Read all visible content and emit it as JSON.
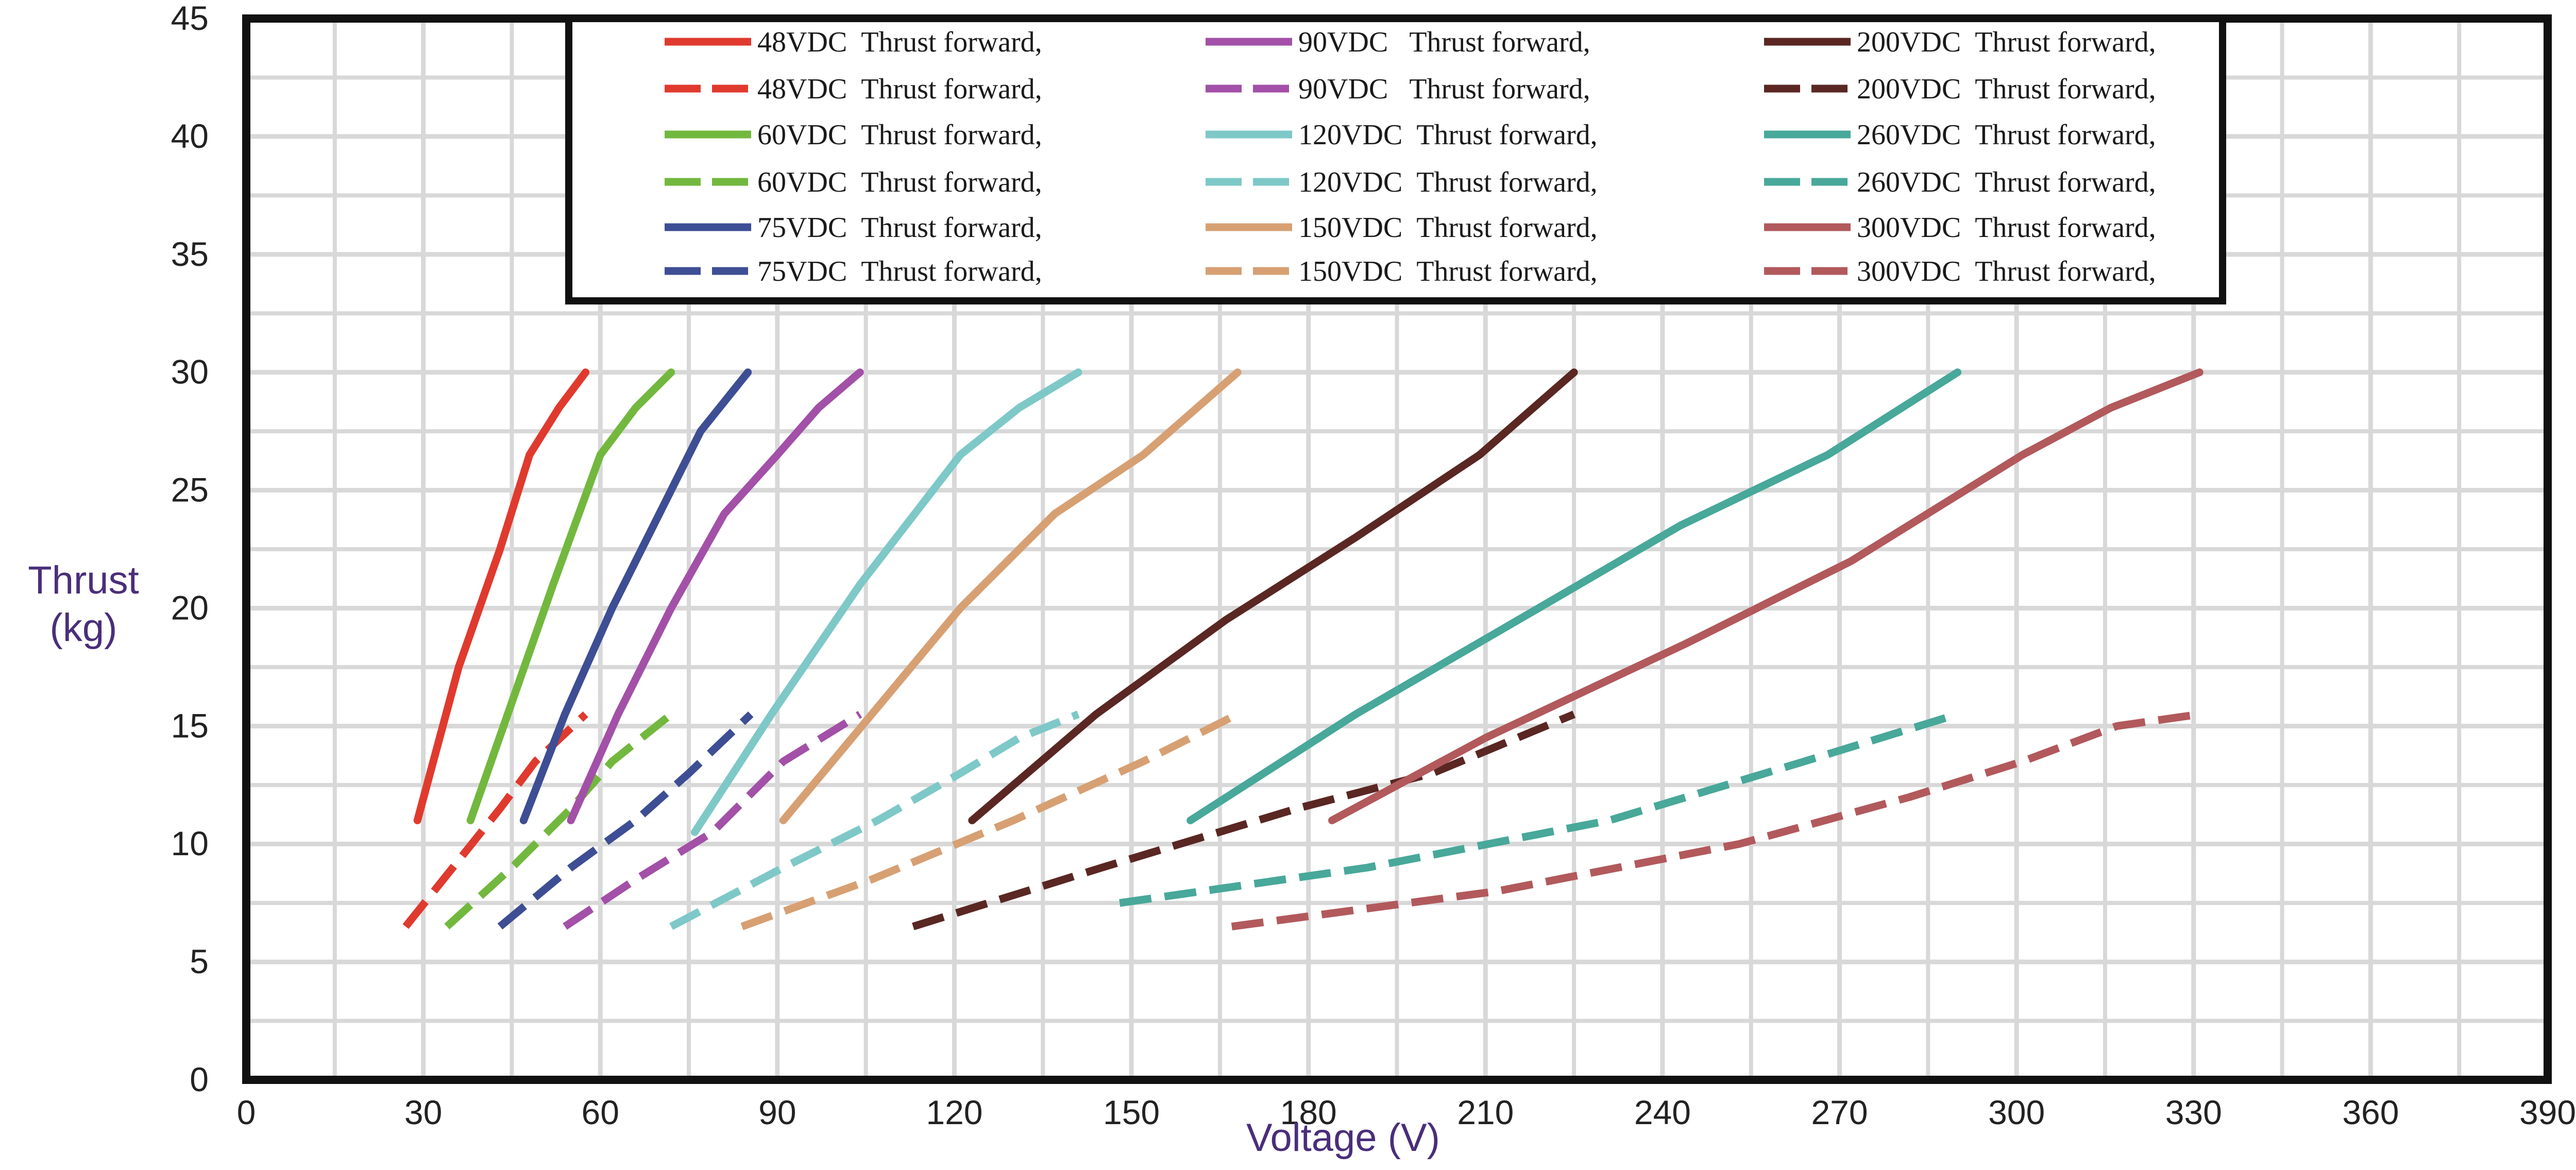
{
  "chart_data": {
    "type": "line",
    "title": "",
    "xlabel": "Voltage (V)",
    "ylabel_lines": [
      "Thrust",
      "(kg)"
    ],
    "xlim": [
      0,
      390
    ],
    "ylim": [
      0,
      45
    ],
    "x_ticks": [
      0,
      30,
      60,
      90,
      120,
      150,
      180,
      210,
      240,
      270,
      300,
      330,
      360,
      390
    ],
    "y_ticks": [
      0,
      5,
      10,
      15,
      20,
      25,
      30,
      35,
      40,
      45
    ],
    "grid": true,
    "legend_position": "top",
    "series": [
      {
        "name": "48VDC  Thrust forward,",
        "color": "#e03a2e",
        "style": "solid",
        "points": [
          [
            29,
            11
          ],
          [
            36,
            17.5
          ],
          [
            43,
            22.5
          ],
          [
            48,
            26.5
          ],
          [
            53,
            28.5
          ],
          [
            57.5,
            30
          ]
        ]
      },
      {
        "name": "48VDC  Thrust forward,",
        "color": "#e03a2e",
        "style": "dashed",
        "points": [
          [
            27,
            6.5
          ],
          [
            35,
            9
          ],
          [
            43,
            11.5
          ],
          [
            49,
            13.5
          ],
          [
            57.5,
            15.5
          ]
        ]
      },
      {
        "name": "60VDC  Thrust forward,",
        "color": "#72b83e",
        "style": "solid",
        "points": [
          [
            38,
            11
          ],
          [
            45,
            16
          ],
          [
            52,
            21
          ],
          [
            60,
            26.5
          ],
          [
            66,
            28.5
          ],
          [
            72,
            30
          ]
        ]
      },
      {
        "name": "60VDC  Thrust forward,",
        "color": "#72b83e",
        "style": "dashed",
        "points": [
          [
            34,
            6.5
          ],
          [
            45,
            9
          ],
          [
            55,
            11.5
          ],
          [
            62,
            13.5
          ],
          [
            72,
            15.5
          ]
        ]
      },
      {
        "name": "75VDC  Thrust forward,",
        "color": "#3e4e94",
        "style": "solid",
        "points": [
          [
            47,
            11
          ],
          [
            54,
            15.5
          ],
          [
            62,
            20
          ],
          [
            70,
            24
          ],
          [
            77,
            27.5
          ],
          [
            85,
            30
          ]
        ]
      },
      {
        "name": "75VDC  Thrust forward,",
        "color": "#3e4e94",
        "style": "dashed",
        "points": [
          [
            43,
            6.5
          ],
          [
            55,
            9
          ],
          [
            66,
            11
          ],
          [
            75,
            13
          ],
          [
            85.5,
            15.5
          ]
        ]
      },
      {
        "name": "90VDC   Thrust forward,",
        "color": "#a350a8",
        "style": "solid",
        "points": [
          [
            55,
            11
          ],
          [
            63,
            15.5
          ],
          [
            72,
            20
          ],
          [
            81,
            24
          ],
          [
            90,
            26.5
          ],
          [
            97,
            28.5
          ],
          [
            104,
            30
          ]
        ]
      },
      {
        "name": "90VDC   Thrust forward,",
        "color": "#a350a8",
        "style": "dashed",
        "points": [
          [
            54,
            6.5
          ],
          [
            66,
            8.5
          ],
          [
            79,
            10.5
          ],
          [
            91,
            13.5
          ],
          [
            104,
            15.5
          ]
        ]
      },
      {
        "name": "120VDC  Thrust forward,",
        "color": "#7ec8c8",
        "style": "solid",
        "points": [
          [
            76,
            10.5
          ],
          [
            89,
            15.5
          ],
          [
            104,
            21
          ],
          [
            121,
            26.5
          ],
          [
            131,
            28.5
          ],
          [
            141,
            30
          ]
        ]
      },
      {
        "name": "120VDC  Thrust forward,",
        "color": "#7ec8c8",
        "style": "dashed",
        "points": [
          [
            72,
            6.5
          ],
          [
            91,
            9
          ],
          [
            107,
            11
          ],
          [
            121,
            13
          ],
          [
            131,
            14.5
          ],
          [
            141,
            15.5
          ]
        ]
      },
      {
        "name": "150VDC  Thrust forward,",
        "color": "#d7a073",
        "style": "solid",
        "points": [
          [
            91,
            11
          ],
          [
            106,
            15.5
          ],
          [
            121,
            20
          ],
          [
            137,
            24
          ],
          [
            152,
            26.5
          ],
          [
            168,
            30
          ]
        ]
      },
      {
        "name": "150VDC  Thrust forward,",
        "color": "#d7a073",
        "style": "dashed",
        "points": [
          [
            84,
            6.5
          ],
          [
            106,
            8.5
          ],
          [
            130,
            11
          ],
          [
            152,
            13.5
          ],
          [
            168,
            15.5
          ]
        ]
      },
      {
        "name": "200VDC  Thrust forward,",
        "color": "#5a2723",
        "style": "solid",
        "points": [
          [
            123,
            11
          ],
          [
            144,
            15.5
          ],
          [
            166,
            19.5
          ],
          [
            188,
            23
          ],
          [
            209,
            26.5
          ],
          [
            225,
            30
          ]
        ]
      },
      {
        "name": "200VDC  Thrust forward,",
        "color": "#5a2723",
        "style": "dashed",
        "points": [
          [
            113,
            6.5
          ],
          [
            145,
            9
          ],
          [
            178,
            11.5
          ],
          [
            201,
            13
          ],
          [
            225,
            15.5
          ]
        ]
      },
      {
        "name": "260VDC  Thrust forward,",
        "color": "#48a89a",
        "style": "solid",
        "points": [
          [
            160,
            11
          ],
          [
            188,
            15.5
          ],
          [
            219,
            20
          ],
          [
            243,
            23.5
          ],
          [
            268,
            26.5
          ],
          [
            290,
            30
          ]
        ]
      },
      {
        "name": "260VDC  Thrust forward,",
        "color": "#48a89a",
        "style": "dashed",
        "points": [
          [
            148,
            7.5
          ],
          [
            190,
            9
          ],
          [
            231,
            11
          ],
          [
            264,
            13.5
          ],
          [
            290,
            15.5
          ]
        ]
      },
      {
        "name": "300VDC  Thrust forward,",
        "color": "#b2595c",
        "style": "solid",
        "points": [
          [
            184,
            11
          ],
          [
            210,
            14.5
          ],
          [
            244,
            18.5
          ],
          [
            272,
            22
          ],
          [
            301,
            26.5
          ],
          [
            316,
            28.5
          ],
          [
            331,
            30
          ]
        ]
      },
      {
        "name": "300VDC  Thrust forward,",
        "color": "#b2595c",
        "style": "dashed",
        "points": [
          [
            167,
            6.5
          ],
          [
            212,
            8
          ],
          [
            253,
            10
          ],
          [
            282,
            12
          ],
          [
            301,
            13.5
          ],
          [
            317,
            15
          ],
          [
            331,
            15.5
          ]
        ]
      }
    ]
  }
}
